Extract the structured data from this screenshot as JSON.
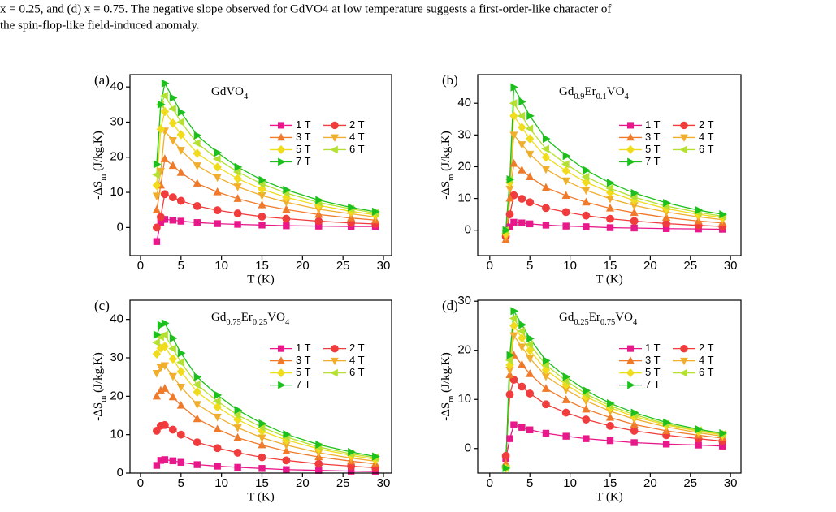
{
  "text_lines": [
    "x = 0.25, and (d) x = 0.75. The negative slope observed for GdVO4 at low temperature suggests a first-order-like character of",
    "the spin-flop-like field-induced anomaly."
  ],
  "chart_data": [
    {
      "type": "line",
      "panel": "(a)",
      "title": "GdVO4",
      "xlabel": "T (K)",
      "ylabel": "-ΔSm (J/kg.K)",
      "legend": "center right",
      "xlim": [
        -1.3,
        31
      ],
      "ylim": [
        -8,
        43.5
      ],
      "xticks": [
        0,
        5,
        10,
        15,
        20,
        25,
        30
      ],
      "yticks": [
        0,
        10,
        20,
        30,
        40
      ],
      "x": [
        2,
        2.5,
        3,
        4,
        5,
        7,
        9.5,
        12,
        15,
        18,
        22,
        26,
        29
      ],
      "series": [
        {
          "name": "1 T",
          "color": "#e8188a",
          "marker": "square",
          "values": [
            -4,
            1.5,
            2.3,
            2.1,
            1.8,
            1.4,
            1.1,
            0.9,
            0.7,
            0.5,
            0.4,
            0.3,
            0.3
          ]
        },
        {
          "name": "2 T",
          "color": "#f03c3c",
          "marker": "circle",
          "values": [
            0,
            3,
            9.5,
            8.6,
            7.6,
            6.1,
            4.9,
            4.0,
            3.1,
            2.5,
            1.8,
            1.3,
            1.0
          ]
        },
        {
          "name": "3 T",
          "color": "#f07a2a",
          "marker": "triangle-up",
          "values": [
            5,
            12,
            19.5,
            17.6,
            15.6,
            12.5,
            10.1,
            8.2,
            6.4,
            5.1,
            3.7,
            2.7,
            2.1
          ]
        },
        {
          "name": "4 T",
          "color": "#f0ae2c",
          "marker": "triangle-down",
          "values": [
            9,
            16,
            27.5,
            24.8,
            22,
            17.6,
            14.3,
            11.6,
            9.1,
            7.2,
            5.2,
            3.9,
            3.0
          ]
        },
        {
          "name": "5 T",
          "color": "#f0dc1c",
          "marker": "diamond",
          "values": [
            12,
            28,
            33,
            29.7,
            26.4,
            21.1,
            17.2,
            13.9,
            10.9,
            8.6,
            6.3,
            4.6,
            3.6
          ]
        },
        {
          "name": "6 T",
          "color": "#b4e032",
          "marker": "triangle-left",
          "values": [
            15,
            35,
            37.5,
            33.8,
            30,
            24,
            19.5,
            15.8,
            12.4,
            9.8,
            7.1,
            5.3,
            4.1
          ]
        },
        {
          "name": "7 T",
          "color": "#1cc01c",
          "marker": "triangle-right",
          "values": [
            18,
            35,
            41,
            36.9,
            32.8,
            26.2,
            21.3,
            17.2,
            13.5,
            10.7,
            7.8,
            5.7,
            4.5
          ]
        }
      ]
    },
    {
      "type": "line",
      "panel": "(b)",
      "title": "Gd0.9Er0.1VO4",
      "xlabel": "T (K)",
      "ylabel": "-ΔSm (J/kg.K)",
      "legend": "center right",
      "xlim": [
        -1.5,
        31.3
      ],
      "ylim": [
        -8,
        49
      ],
      "xticks": [
        0,
        5,
        10,
        15,
        20,
        25,
        30
      ],
      "yticks": [
        0,
        10,
        20,
        30,
        40
      ],
      "x": [
        2,
        2.5,
        3,
        4,
        5,
        7,
        9.5,
        12,
        15,
        18,
        22,
        26,
        29
      ],
      "series": [
        {
          "name": "1 T",
          "color": "#e8188a",
          "marker": "square",
          "values": [
            -1,
            1,
            2.5,
            2.3,
            2.0,
            1.6,
            1.3,
            1.1,
            0.8,
            0.7,
            0.5,
            0.4,
            0.3
          ]
        },
        {
          "name": "2 T",
          "color": "#f03c3c",
          "marker": "circle",
          "values": [
            -2,
            5,
            11,
            9.9,
            8.8,
            7,
            5.7,
            4.6,
            3.6,
            2.9,
            2.1,
            1.5,
            1.2
          ]
        },
        {
          "name": "3 T",
          "color": "#f07a2a",
          "marker": "triangle-up",
          "values": [
            -3,
            10,
            21,
            18.9,
            16.8,
            13.4,
            10.9,
            8.8,
            6.9,
            5.5,
            4,
            2.9,
            2.3
          ]
        },
        {
          "name": "4 T",
          "color": "#f0ae2c",
          "marker": "triangle-down",
          "values": [
            -2,
            13,
            30,
            27,
            24,
            19.2,
            15.6,
            12.6,
            9.9,
            7.8,
            5.7,
            4.2,
            3.3
          ]
        },
        {
          "name": "5 T",
          "color": "#f0dc1c",
          "marker": "diamond",
          "values": [
            -1,
            15,
            36,
            32.4,
            28.8,
            23,
            18.7,
            15.1,
            11.9,
            9.4,
            6.8,
            5,
            4
          ]
        },
        {
          "name": "6 T",
          "color": "#b4e032",
          "marker": "triangle-left",
          "values": [
            0,
            16,
            40,
            36,
            32,
            25.6,
            20.8,
            16.8,
            13.2,
            10.4,
            7.6,
            5.6,
            4.4
          ]
        },
        {
          "name": "7 T",
          "color": "#1cc01c",
          "marker": "triangle-right",
          "values": [
            0,
            16,
            45,
            40.5,
            36,
            28.8,
            23.4,
            18.9,
            14.9,
            11.7,
            8.6,
            6.3,
            5
          ]
        }
      ]
    },
    {
      "type": "line",
      "panel": "(c)",
      "title": "Gd0.75Er0.25VO4",
      "xlabel": "T (K)",
      "ylabel": "-ΔSm (J/kg.K)",
      "legend": "center right",
      "xlim": [
        -1.3,
        31
      ],
      "ylim": [
        0,
        45
      ],
      "xticks": [
        0,
        5,
        10,
        15,
        20,
        25,
        30
      ],
      "yticks": [
        0,
        10,
        20,
        30,
        40
      ],
      "x": [
        2,
        2.5,
        3,
        4,
        5,
        7,
        9.5,
        12,
        15,
        18,
        22,
        26,
        29
      ],
      "series": [
        {
          "name": "1 T",
          "color": "#e8188a",
          "marker": "square",
          "values": [
            2,
            3.3,
            3.5,
            3.2,
            2.8,
            2.2,
            1.8,
            1.5,
            1.2,
            0.9,
            0.7,
            0.5,
            0.4
          ]
        },
        {
          "name": "2 T",
          "color": "#f03c3c",
          "marker": "circle",
          "values": [
            11,
            12.3,
            12.5,
            11.3,
            10,
            8,
            6.5,
            5.3,
            4.1,
            3.3,
            2.4,
            1.8,
            1.4
          ]
        },
        {
          "name": "3 T",
          "color": "#f07a2a",
          "marker": "triangle-up",
          "values": [
            20,
            21.5,
            22,
            19.8,
            17.6,
            14.1,
            11.4,
            9.2,
            7.3,
            5.7,
            4.2,
            3.1,
            2.4
          ]
        },
        {
          "name": "4 T",
          "color": "#f0ae2c",
          "marker": "triangle-down",
          "values": [
            26,
            27.5,
            28,
            25.2,
            22.4,
            17.9,
            14.6,
            11.8,
            9.2,
            7.3,
            5.3,
            3.9,
            3.1
          ]
        },
        {
          "name": "5 T",
          "color": "#f0dc1c",
          "marker": "diamond",
          "values": [
            31,
            32.5,
            33,
            29.7,
            26.4,
            21.1,
            17.2,
            13.9,
            10.9,
            8.6,
            6.3,
            4.6,
            3.6
          ]
        },
        {
          "name": "6 T",
          "color": "#b4e032",
          "marker": "triangle-left",
          "values": [
            34,
            35.5,
            36,
            32.4,
            28.8,
            23,
            18.7,
            15.1,
            11.9,
            9.4,
            6.8,
            5,
            4
          ]
        },
        {
          "name": "7 T",
          "color": "#1cc01c",
          "marker": "triangle-right",
          "values": [
            36,
            38.5,
            39,
            35.1,
            31.2,
            25,
            20.3,
            16.4,
            12.9,
            10.1,
            7.4,
            5.5,
            4.3
          ]
        }
      ]
    },
    {
      "type": "line",
      "panel": "(d)",
      "title": "Gd0.25Er0.75VO4",
      "xlabel": "T (K)",
      "ylabel": "-ΔSm (J/kg.K)",
      "legend": "center right",
      "xlim": [
        -1.5,
        31.3
      ],
      "ylim": [
        -5,
        30.2
      ],
      "xticks": [
        0,
        5,
        10,
        15,
        20,
        25,
        30
      ],
      "yticks": [
        0,
        10,
        20,
        30
      ],
      "x": [
        2,
        2.5,
        3,
        4,
        5,
        7,
        9.5,
        12,
        15,
        18,
        22,
        26,
        29
      ],
      "series": [
        {
          "name": "1 T",
          "color": "#e8188a",
          "marker": "square",
          "values": [
            -2,
            2,
            4.8,
            4.3,
            3.8,
            3.1,
            2.5,
            2,
            1.6,
            1.2,
            0.9,
            0.7,
            0.5
          ]
        },
        {
          "name": "2 T",
          "color": "#f03c3c",
          "marker": "circle",
          "values": [
            -1.5,
            11,
            14,
            12.6,
            11.2,
            9,
            7.3,
            5.9,
            4.6,
            3.6,
            2.7,
            2,
            1.5
          ]
        },
        {
          "name": "3 T",
          "color": "#f07a2a",
          "marker": "triangle-up",
          "values": [
            -3,
            15,
            19,
            17.1,
            15.2,
            12.2,
            9.9,
            8,
            6.3,
            4.9,
            3.6,
            2.7,
            2.1
          ]
        },
        {
          "name": "4 T",
          "color": "#f0ae2c",
          "marker": "triangle-down",
          "values": [
            -4,
            16,
            23,
            20.7,
            18.4,
            14.7,
            12,
            9.7,
            7.6,
            6,
            4.4,
            3.2,
            2.5
          ]
        },
        {
          "name": "5 T",
          "color": "#f0dc1c",
          "marker": "diamond",
          "values": [
            -4,
            17,
            25,
            22.5,
            20,
            16,
            13,
            10.5,
            8.3,
            6.5,
            4.8,
            3.5,
            2.8
          ]
        },
        {
          "name": "6 T",
          "color": "#b4e032",
          "marker": "triangle-left",
          "values": [
            -4,
            18,
            26.5,
            23.9,
            21.2,
            17,
            13.8,
            11.1,
            8.7,
            6.9,
            5,
            3.7,
            2.9
          ]
        },
        {
          "name": "7 T",
          "color": "#1cc01c",
          "marker": "triangle-right",
          "values": [
            -4,
            19,
            28,
            25.2,
            22.4,
            17.9,
            14.6,
            11.8,
            9.2,
            7.3,
            5.3,
            3.9,
            3.1
          ]
        }
      ]
    }
  ]
}
